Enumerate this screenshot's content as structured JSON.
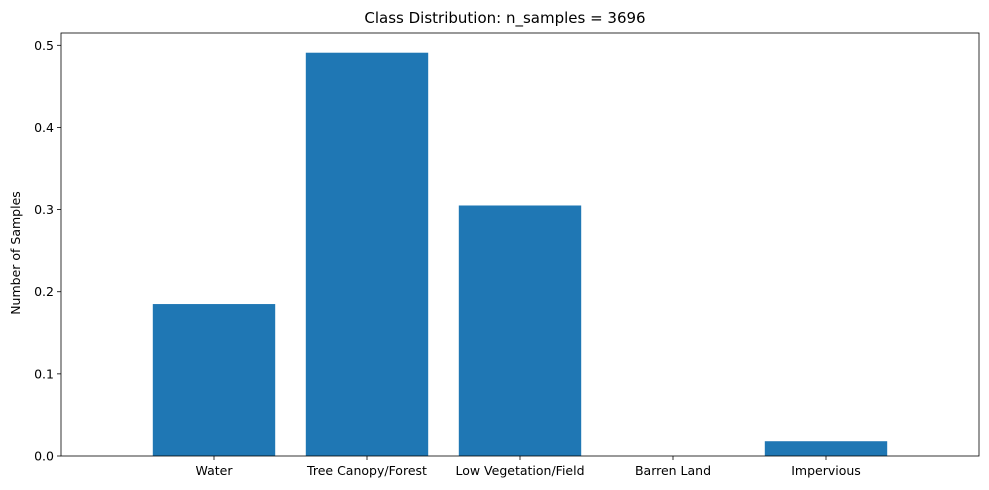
{
  "chart_data": {
    "type": "bar",
    "title": "Class Distribution: n_samples = 3696",
    "xlabel": "",
    "ylabel": "Number of Samples",
    "categories": [
      "Water",
      "Tree Canopy/Forest",
      "Low Vegetation/Field",
      "Barren Land",
      "Impervious"
    ],
    "values": [
      0.185,
      0.491,
      0.305,
      0.0,
      0.018
    ],
    "ylim": [
      0,
      0.515
    ],
    "yticks": [
      0.0,
      0.1,
      0.2,
      0.3,
      0.4,
      0.5
    ],
    "ytick_labels": [
      "0.0",
      "0.1",
      "0.2",
      "0.3",
      "0.4",
      "0.5"
    ],
    "bar_color": "#1f77b4",
    "grid": false,
    "legend": "none"
  }
}
